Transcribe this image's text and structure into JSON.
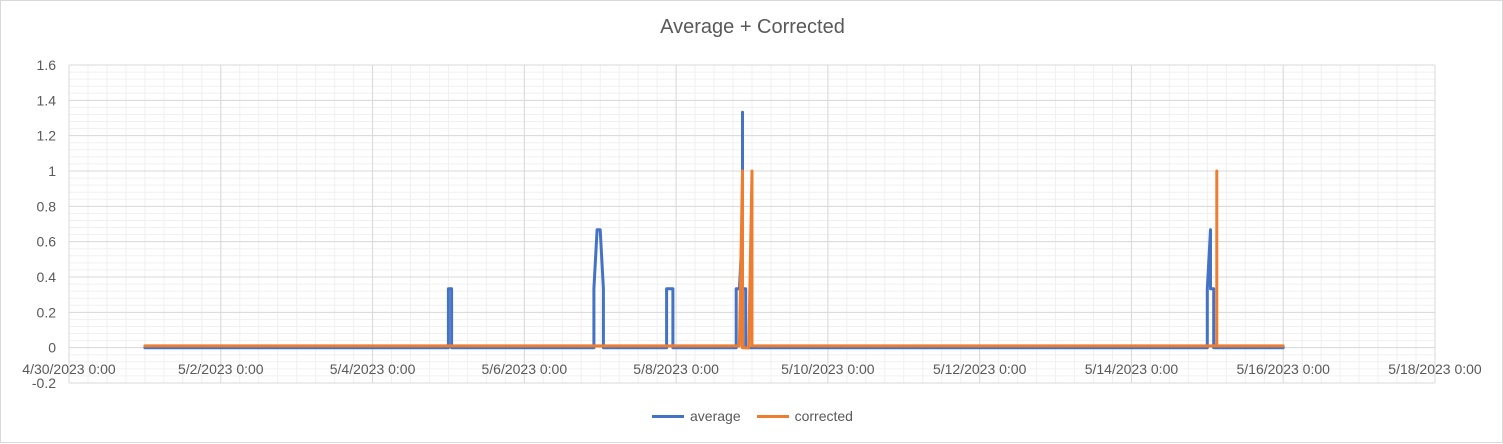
{
  "chart_data": {
    "type": "line",
    "title": "Average + Corrected",
    "xlabel": "",
    "ylabel": "",
    "xlim": [
      "4/30/2023 0:00",
      "5/18/2023 0:00"
    ],
    "ylim": [
      -0.2,
      1.6
    ],
    "x_tick_labels": [
      "4/30/2023 0:00",
      "5/2/2023 0:00",
      "5/4/2023 0:00",
      "5/6/2023 0:00",
      "5/8/2023 0:00",
      "5/10/2023 0:00",
      "5/12/2023 0:00",
      "5/14/2023 0:00",
      "5/16/2023 0:00",
      "5/18/2023 0:00"
    ],
    "y_tick_labels": [
      "-0.2",
      "0",
      "0.2",
      "0.4",
      "0.6",
      "0.8",
      "1",
      "1.2",
      "1.4",
      "1.6"
    ],
    "grid": true,
    "legend_position": "bottom",
    "series": [
      {
        "name": "average",
        "color": "#4472c4",
        "points": [
          [
            "5/1/2023 0:00",
            0
          ],
          [
            "5/5/2023 0:00",
            0
          ],
          [
            "5/5/2023 0:00",
            0.333
          ],
          [
            "5/5/2023 1:00",
            0.333
          ],
          [
            "5/5/2023 1:00",
            0
          ],
          [
            "5/6/2023 22:00",
            0
          ],
          [
            "5/6/2023 22:00",
            0.333
          ],
          [
            "5/6/2023 23:00",
            0.667
          ],
          [
            "5/7/2023 0:00",
            0.667
          ],
          [
            "5/7/2023 1:00",
            0.333
          ],
          [
            "5/7/2023 1:00",
            0
          ],
          [
            "5/7/2023 21:00",
            0
          ],
          [
            "5/7/2023 21:00",
            0.333
          ],
          [
            "5/7/2023 23:00",
            0.333
          ],
          [
            "5/7/2023 23:00",
            0
          ],
          [
            "5/8/2023 19:00",
            0
          ],
          [
            "5/8/2023 19:00",
            0.333
          ],
          [
            "5/8/2023 20:00",
            0.333
          ],
          [
            "5/8/2023 21:00",
            0.667
          ],
          [
            "5/8/2023 21:00",
            1.333
          ],
          [
            "5/8/2023 21:00",
            0.333
          ],
          [
            "5/8/2023 22:00",
            0.333
          ],
          [
            "5/8/2023 22:00",
            0
          ],
          [
            "5/15/2023 0:00",
            0
          ],
          [
            "5/15/2023 0:00",
            0.333
          ],
          [
            "5/15/2023 1:00",
            0.667
          ],
          [
            "5/15/2023 1:00",
            0.333
          ],
          [
            "5/15/2023 2:00",
            0.333
          ],
          [
            "5/15/2023 2:00",
            0
          ],
          [
            "5/16/2023 0:00",
            0
          ]
        ]
      },
      {
        "name": "corrected",
        "color": "#ed7d31",
        "points": [
          [
            "5/1/2023 0:00",
            0.01
          ],
          [
            "5/8/2023 20:00",
            0.01
          ],
          [
            "5/8/2023 21:00",
            1.0
          ],
          [
            "5/8/2023 21:00",
            0
          ],
          [
            "5/8/2023 23:00",
            0
          ],
          [
            "5/9/2023 0:00",
            1.0
          ],
          [
            "5/9/2023 0:00",
            0.01
          ],
          [
            "5/15/2023 3:00",
            0.01
          ],
          [
            "5/15/2023 3:00",
            1.0
          ],
          [
            "5/15/2023 3:00",
            0.01
          ],
          [
            "5/16/2023 0:00",
            0.01
          ]
        ]
      }
    ]
  }
}
